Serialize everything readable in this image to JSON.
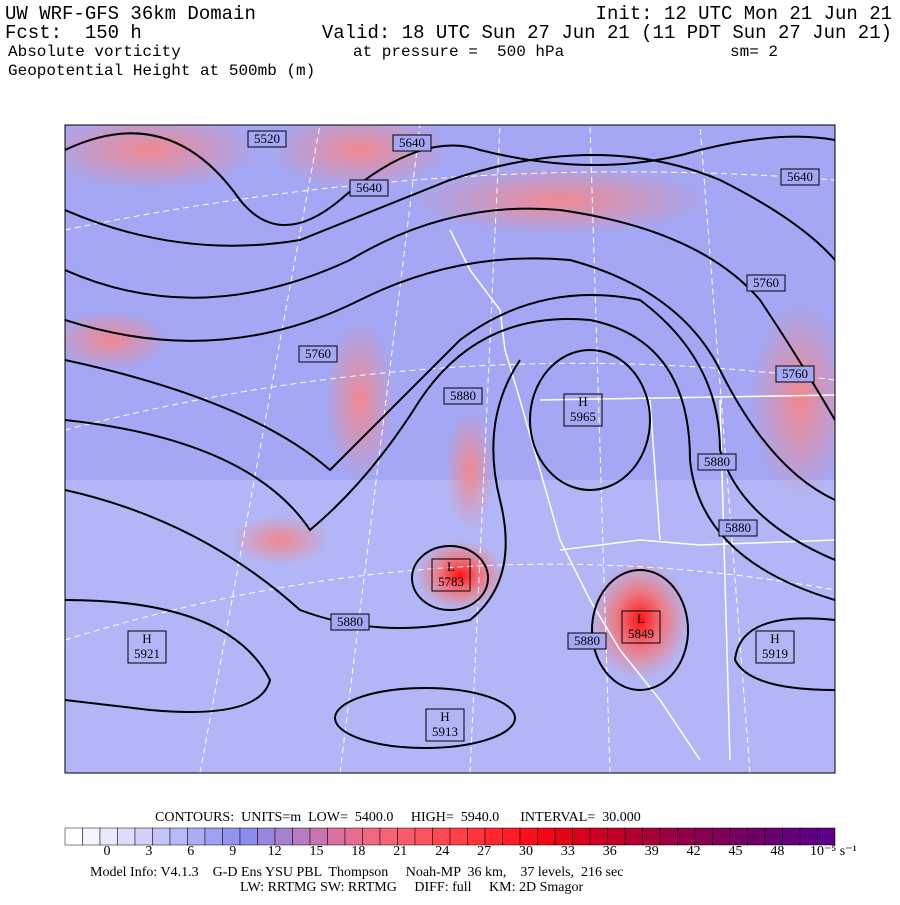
{
  "header": {
    "title": "UW WRF-GFS 36km Domain",
    "init": "Init: 12 UTC Mon 21 Jun 21",
    "forecast": "Fcst:  150 h",
    "valid": "Valid: 18 UTC Sun 27 Jun 21 (11 PDT Sun 27 Jun 21)",
    "field": "Absolute vorticity",
    "pressure": "at pressure =  500 hPa",
    "smoothing": "sm= 2",
    "contour_field": "Geopotential Height at 500mb (m)"
  },
  "map": {
    "contour_labels": [
      5520,
      5640,
      5640,
      5640,
      5760,
      5760,
      5760,
      5880,
      5880,
      5880,
      5880,
      5880
    ],
    "centers": [
      {
        "type": "H",
        "value": 5965
      },
      {
        "type": "L",
        "value": 5783
      },
      {
        "type": "L",
        "value": 5849
      },
      {
        "type": "H",
        "value": 5921
      },
      {
        "type": "H",
        "value": 5913
      },
      {
        "type": "H",
        "value": 5919
      }
    ]
  },
  "colorbar": {
    "ticks": [
      0,
      3,
      6,
      9,
      12,
      15,
      18,
      21,
      24,
      27,
      30,
      33,
      36,
      39,
      42,
      45,
      48
    ],
    "unit": "10⁻⁵ s⁻¹"
  },
  "footer": {
    "contours": "CONTOURS:  UNITS=m  LOW=  5400.0     HIGH=  5940.0      INTERVAL=  30.000",
    "model": "Model Info: V4.1.3    G-D Ens YSU PBL  Thompson     Noah-MP  36 km,    37 levels,  216 sec",
    "physics": "LW: RRTMG SW: RRTMG     DIFF: full     KM: 2D Smagor"
  }
}
